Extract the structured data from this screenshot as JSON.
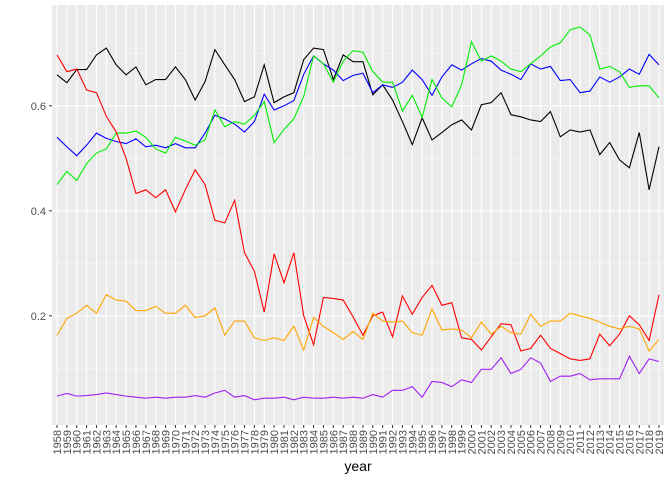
{
  "chart_data": {
    "type": "line",
    "x_label": "year",
    "categories": [
      "1958",
      "1959",
      "1960",
      "1961",
      "1962",
      "1963",
      "1964",
      "1965",
      "1966",
      "1967",
      "1968",
      "1969",
      "1970",
      "1971",
      "1972",
      "1973",
      "1974",
      "1975",
      "1976",
      "1977",
      "1978",
      "1979",
      "1980",
      "1981",
      "1982",
      "1983",
      "1984",
      "1985",
      "1986",
      "1987",
      "1988",
      "1989",
      "1990",
      "1991",
      "1992",
      "1993",
      "1994",
      "1995",
      "1996",
      "1997",
      "1998",
      "1999",
      "2000",
      "2001",
      "2002",
      "2003",
      "2004",
      "2005",
      "2006",
      "2007",
      "2008",
      "2009",
      "2010",
      "2011",
      "2012",
      "2013",
      "2014",
      "2015",
      "2016",
      "2017",
      "2018",
      "2019"
    ],
    "series": [
      {
        "color": "#000000",
        "values": [
          0.659,
          0.644,
          0.669,
          0.669,
          0.697,
          0.71,
          0.678,
          0.659,
          0.674,
          0.64,
          0.65,
          0.65,
          0.674,
          0.65,
          0.611,
          0.646,
          0.707,
          0.678,
          0.65,
          0.608,
          0.617,
          0.678,
          0.606,
          0.617,
          0.625,
          0.688,
          0.71,
          0.707,
          0.65,
          0.697,
          0.684,
          0.684,
          0.621,
          0.64,
          0.611,
          0.57,
          0.526,
          0.577,
          0.535,
          0.549,
          0.564,
          0.573,
          0.554,
          0.602,
          0.606,
          0.625,
          0.583,
          0.579,
          0.573,
          0.57,
          0.589,
          0.541,
          0.554,
          0.55,
          0.554,
          0.507,
          0.53,
          0.497,
          0.482,
          0.549,
          0.44,
          0.522
        ]
      },
      {
        "color": "#0000ff",
        "values": [
          0.54,
          0.522,
          0.505,
          0.525,
          0.548,
          0.538,
          0.532,
          0.528,
          0.537,
          0.522,
          0.525,
          0.52,
          0.528,
          0.52,
          0.52,
          0.548,
          0.582,
          0.575,
          0.565,
          0.55,
          0.57,
          0.622,
          0.592,
          0.6,
          0.61,
          0.66,
          0.695,
          0.68,
          0.668,
          0.648,
          0.658,
          0.662,
          0.625,
          0.64,
          0.635,
          0.645,
          0.668,
          0.65,
          0.62,
          0.655,
          0.678,
          0.668,
          0.68,
          0.69,
          0.685,
          0.668,
          0.66,
          0.65,
          0.68,
          0.67,
          0.675,
          0.648,
          0.65,
          0.625,
          0.628,
          0.655,
          0.645,
          0.655,
          0.67,
          0.66,
          0.698,
          0.678
        ]
      },
      {
        "color": "#00ee00",
        "values": [
          0.45,
          0.475,
          0.458,
          0.49,
          0.51,
          0.518,
          0.548,
          0.548,
          0.552,
          0.54,
          0.518,
          0.51,
          0.54,
          0.533,
          0.525,
          0.535,
          0.592,
          0.56,
          0.57,
          0.565,
          0.582,
          0.608,
          0.53,
          0.555,
          0.575,
          0.618,
          0.695,
          0.68,
          0.645,
          0.685,
          0.705,
          0.702,
          0.665,
          0.645,
          0.645,
          0.59,
          0.62,
          0.578,
          0.65,
          0.615,
          0.598,
          0.64,
          0.722,
          0.685,
          0.695,
          0.685,
          0.67,
          0.665,
          0.68,
          0.695,
          0.712,
          0.72,
          0.745,
          0.75,
          0.735,
          0.67,
          0.675,
          0.665,
          0.635,
          0.638,
          0.638,
          0.615
        ]
      },
      {
        "color": "#ff0000",
        "values": [
          0.697,
          0.665,
          0.67,
          0.63,
          0.625,
          0.58,
          0.55,
          0.5,
          0.433,
          0.44,
          0.425,
          0.44,
          0.398,
          0.44,
          0.478,
          0.45,
          0.382,
          0.377,
          0.42,
          0.32,
          0.285,
          0.207,
          0.318,
          0.263,
          0.32,
          0.2,
          0.145,
          0.235,
          0.233,
          0.23,
          0.198,
          0.163,
          0.2,
          0.207,
          0.16,
          0.238,
          0.203,
          0.235,
          0.258,
          0.22,
          0.225,
          0.158,
          0.155,
          0.135,
          0.16,
          0.185,
          0.183,
          0.133,
          0.138,
          0.163,
          0.138,
          0.128,
          0.118,
          0.115,
          0.118,
          0.165,
          0.143,
          0.165,
          0.2,
          0.183,
          0.153,
          0.24
        ]
      },
      {
        "color": "#ffa500",
        "values": [
          0.163,
          0.195,
          0.205,
          0.22,
          0.205,
          0.24,
          0.23,
          0.228,
          0.21,
          0.21,
          0.218,
          0.205,
          0.205,
          0.22,
          0.197,
          0.2,
          0.215,
          0.163,
          0.19,
          0.19,
          0.158,
          0.153,
          0.158,
          0.153,
          0.18,
          0.135,
          0.197,
          0.18,
          0.168,
          0.155,
          0.17,
          0.155,
          0.205,
          0.19,
          0.188,
          0.19,
          0.168,
          0.163,
          0.213,
          0.173,
          0.175,
          0.173,
          0.158,
          0.188,
          0.165,
          0.18,
          0.168,
          0.165,
          0.203,
          0.18,
          0.19,
          0.19,
          0.205,
          0.2,
          0.195,
          0.188,
          0.18,
          0.175,
          0.18,
          0.175,
          0.133,
          0.155
        ]
      },
      {
        "color": "#a020f0",
        "values": [
          0.047,
          0.052,
          0.047,
          0.048,
          0.05,
          0.053,
          0.05,
          0.047,
          0.045,
          0.043,
          0.045,
          0.043,
          0.045,
          0.045,
          0.048,
          0.045,
          0.053,
          0.058,
          0.045,
          0.048,
          0.04,
          0.043,
          0.043,
          0.045,
          0.04,
          0.045,
          0.043,
          0.043,
          0.045,
          0.043,
          0.045,
          0.043,
          0.05,
          0.045,
          0.058,
          0.058,
          0.065,
          0.045,
          0.075,
          0.073,
          0.065,
          0.078,
          0.073,
          0.098,
          0.098,
          0.12,
          0.09,
          0.098,
          0.12,
          0.11,
          0.075,
          0.085,
          0.085,
          0.09,
          0.078,
          0.08,
          0.08,
          0.08,
          0.123,
          0.09,
          0.118,
          0.113
        ]
      }
    ],
    "ylim": [
      -0.008,
      0.792
    ],
    "yticks": [
      0.2,
      0.4,
      0.6
    ],
    "grid": true
  }
}
